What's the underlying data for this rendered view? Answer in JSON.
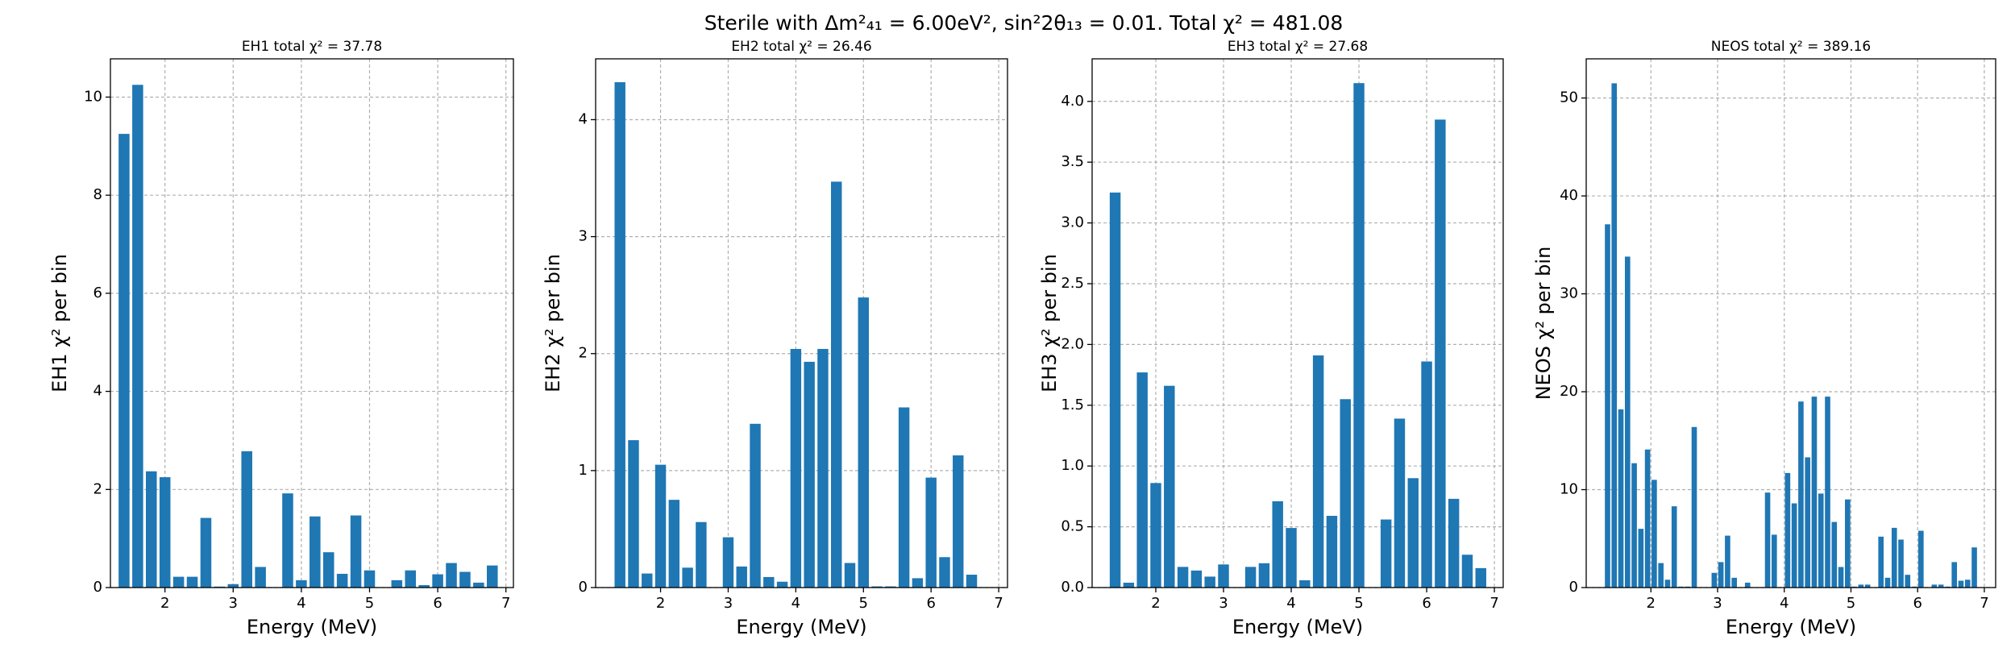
{
  "title": "Sterile with Δm²₄₁ = 6.00eV², sin²2θ₁₃ = 0.01. Total χ² = 481.08",
  "chart_data": [
    {
      "type": "bar",
      "title": "EH1 total χ² = 37.78",
      "xlabel": "Energy (MeV)",
      "ylabel": "EH1 χ² per bin",
      "color": "#1f77b4",
      "grid": true,
      "bar_width": 0.16,
      "x": [
        1.4,
        1.6,
        1.8,
        2.0,
        2.2,
        2.4,
        2.6,
        2.8,
        3.0,
        3.2,
        3.4,
        3.6,
        3.8,
        4.0,
        4.2,
        4.4,
        4.6,
        4.8,
        5.0,
        5.2,
        5.4,
        5.6,
        5.8,
        6.0,
        6.2,
        6.4,
        6.6,
        6.8
      ],
      "values": [
        9.25,
        10.25,
        2.37,
        2.25,
        0.22,
        0.22,
        1.42,
        0.02,
        0.07,
        2.78,
        0.42,
        0.0,
        1.92,
        0.15,
        1.45,
        0.72,
        0.28,
        1.47,
        0.35,
        0.0,
        0.15,
        0.35,
        0.05,
        0.27,
        0.5,
        0.32,
        0.1,
        0.45
      ],
      "xlim": [
        1.2,
        7.11
      ],
      "ylim": [
        0,
        10.78
      ],
      "xticks": [
        2,
        3,
        4,
        5,
        6,
        7
      ],
      "yticks": [
        0,
        2,
        4,
        6,
        8,
        10
      ]
    },
    {
      "type": "bar",
      "title": "EH2 total χ² = 26.46",
      "xlabel": "Energy (MeV)",
      "ylabel": "EH2 χ² per bin",
      "color": "#1f77b4",
      "grid": true,
      "bar_width": 0.16,
      "x": [
        1.4,
        1.6,
        1.8,
        2.0,
        2.2,
        2.4,
        2.6,
        2.8,
        3.0,
        3.2,
        3.4,
        3.6,
        3.8,
        4.0,
        4.2,
        4.4,
        4.6,
        4.8,
        5.0,
        5.2,
        5.4,
        5.6,
        5.8,
        6.0,
        6.2,
        6.4,
        6.6,
        6.8
      ],
      "values": [
        4.32,
        1.26,
        0.12,
        1.05,
        0.75,
        0.17,
        0.56,
        0.0,
        0.43,
        0.18,
        1.4,
        0.09,
        0.05,
        2.04,
        1.93,
        2.04,
        3.47,
        0.21,
        2.48,
        0.01,
        0.01,
        1.54,
        0.08,
        0.94,
        0.26,
        1.13,
        0.11,
        0.0
      ],
      "xlim": [
        1.04,
        7.13
      ],
      "ylim": [
        0,
        4.52
      ],
      "xticks": [
        2,
        3,
        4,
        5,
        6,
        7
      ],
      "yticks": [
        0,
        1,
        2,
        3,
        4
      ]
    },
    {
      "type": "bar",
      "title": "EH3 total χ² = 27.68",
      "xlabel": "Energy (MeV)",
      "ylabel": "EH3 χ² per bin",
      "color": "#1f77b4",
      "grid": true,
      "bar_width": 0.16,
      "x": [
        1.4,
        1.6,
        1.8,
        2.0,
        2.2,
        2.4,
        2.6,
        2.8,
        3.0,
        3.2,
        3.4,
        3.6,
        3.8,
        4.0,
        4.2,
        4.4,
        4.6,
        4.8,
        5.0,
        5.2,
        5.4,
        5.6,
        5.8,
        6.0,
        6.2,
        6.4,
        6.6,
        6.8
      ],
      "values": [
        3.25,
        0.04,
        1.77,
        0.86,
        1.66,
        0.17,
        0.14,
        0.09,
        0.19,
        0.0,
        0.17,
        0.2,
        0.71,
        0.49,
        0.06,
        1.91,
        0.59,
        1.55,
        4.15,
        0.0,
        0.56,
        1.39,
        0.9,
        1.86,
        3.85,
        0.73,
        0.27,
        0.16
      ],
      "xlim": [
        1.06,
        7.13
      ],
      "ylim": [
        0,
        4.35
      ],
      "xticks": [
        2,
        3,
        4,
        5,
        6,
        7
      ],
      "yticks": [
        {
          "value": 0,
          "label": "0.0"
        },
        0.5,
        {
          "value": 1,
          "label": "1.0"
        },
        1.5,
        {
          "value": 2,
          "label": "2.0"
        },
        2.5,
        {
          "value": 3,
          "label": "3.0"
        },
        3.5,
        {
          "value": 4,
          "label": "4.0"
        }
      ]
    },
    {
      "type": "bar",
      "title": "NEOS total χ² = 389.16",
      "xlabel": "Energy (MeV)",
      "ylabel": "NEOS χ² per bin",
      "color": "#1f77b4",
      "grid": true,
      "bar_width": 0.08,
      "x": [
        1.35,
        1.45,
        1.55,
        1.65,
        1.75,
        1.85,
        1.95,
        2.05,
        2.15,
        2.25,
        2.35,
        2.45,
        2.55,
        2.65,
        2.75,
        2.85,
        2.95,
        3.05,
        3.15,
        3.25,
        3.35,
        3.45,
        3.55,
        3.65,
        3.75,
        3.85,
        3.95,
        4.05,
        4.15,
        4.25,
        4.35,
        4.45,
        4.55,
        4.65,
        4.75,
        4.85,
        4.95,
        5.05,
        5.15,
        5.25,
        5.35,
        5.45,
        5.55,
        5.65,
        5.75,
        5.85,
        5.95,
        6.05,
        6.15,
        6.25,
        6.35,
        6.45,
        6.55,
        6.65,
        6.75,
        6.85
      ],
      "values": [
        37.1,
        51.5,
        18.2,
        33.8,
        12.7,
        6.0,
        14.1,
        11.0,
        2.5,
        0.8,
        8.3,
        0.1,
        0.1,
        16.4,
        0.0,
        0.0,
        1.5,
        2.6,
        5.3,
        1.0,
        0.0,
        0.5,
        0.0,
        0.0,
        9.7,
        5.4,
        0.0,
        11.7,
        8.6,
        19.0,
        13.3,
        19.5,
        9.6,
        19.5,
        6.7,
        2.1,
        9.0,
        0.1,
        0.3,
        0.3,
        0.0,
        5.2,
        1.0,
        6.1,
        4.9,
        1.3,
        0.1,
        5.8,
        0.0,
        0.3,
        0.3,
        0.1,
        2.6,
        0.7,
        0.8,
        4.1
      ],
      "xlim": [
        1.03,
        7.17
      ],
      "ylim": [
        0,
        54
      ],
      "xticks": [
        2,
        3,
        4,
        5,
        6,
        7
      ],
      "yticks": [
        0,
        10,
        20,
        30,
        40,
        50
      ]
    }
  ]
}
